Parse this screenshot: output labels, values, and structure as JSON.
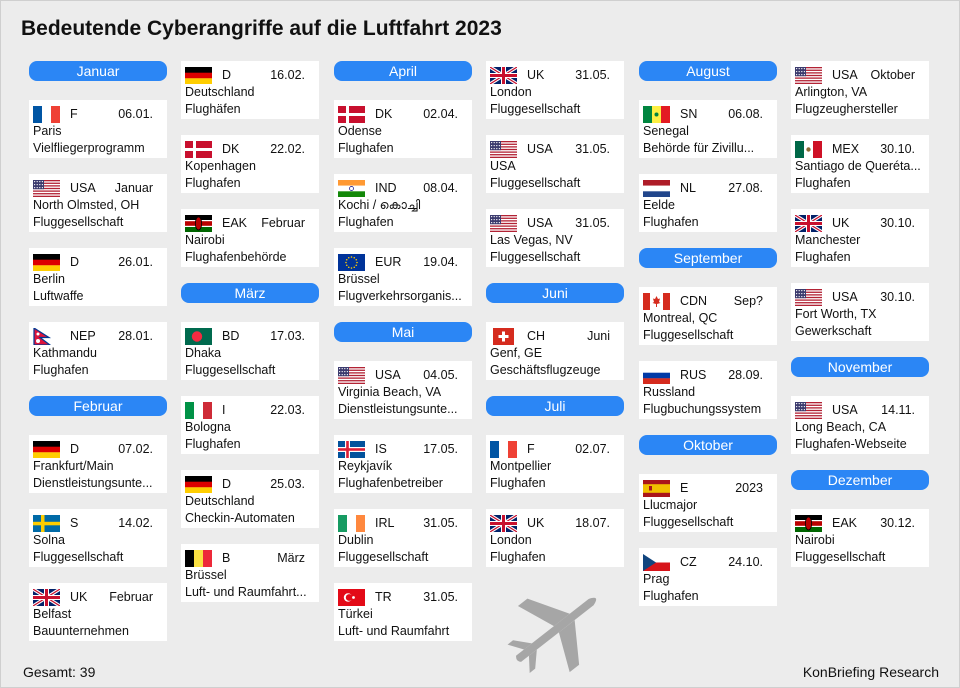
{
  "title": "Bedeutende Cyberangriffe auf die Luftfahrt 2023",
  "footer": {
    "total": "Gesamt: 39",
    "source": "KonBriefing Research"
  },
  "columns": [
    {
      "id": "col1",
      "items": [
        {
          "month": "Januar"
        },
        {
          "flag": "fr",
          "code": "F",
          "date": "06.01.",
          "location": "Paris",
          "target": "Vielfliegerprogramm"
        },
        {
          "flag": "us",
          "code": "USA",
          "date": "Januar",
          "location": "North Olmsted, OH",
          "target": "Fluggesellschaft"
        },
        {
          "flag": "de",
          "code": "D",
          "date": "26.01.",
          "location": "Berlin",
          "target": "Luftwaffe"
        },
        {
          "flag": "np",
          "code": "NEP",
          "date": "28.01.",
          "location": "Kathmandu",
          "target": "Flughafen"
        },
        {
          "month": "Februar"
        },
        {
          "flag": "de",
          "code": "D",
          "date": "07.02.",
          "location": "Frankfurt/Main",
          "target": "Dienstleistungsunte..."
        },
        {
          "flag": "se",
          "code": "S",
          "date": "14.02.",
          "location": "Solna",
          "target": "Fluggesellschaft"
        },
        {
          "flag": "uk",
          "code": "UK",
          "date": "Februar",
          "location": "Belfast",
          "target": "Bauunternehmen"
        }
      ]
    },
    {
      "id": "col2",
      "items": [
        {
          "flag": "de",
          "code": "D",
          "date": "16.02.",
          "location": "Deutschland",
          "target": "Flughäfen"
        },
        {
          "flag": "dk",
          "code": "DK",
          "date": "22.02.",
          "location": "Kopenhagen",
          "target": "Flughafen"
        },
        {
          "flag": "ke",
          "code": "EAK",
          "date": "Februar",
          "location": "Nairobi",
          "target": "Flughafenbehörde"
        },
        {
          "month": "März"
        },
        {
          "flag": "bd",
          "code": "BD",
          "date": "17.03.",
          "location": "Dhaka",
          "target": "Fluggesellschaft"
        },
        {
          "flag": "it",
          "code": "I",
          "date": "22.03.",
          "location": "Bologna",
          "target": "Flughafen"
        },
        {
          "flag": "de",
          "code": "D",
          "date": "25.03.",
          "location": "Deutschland",
          "target": "Checkin-Automaten"
        },
        {
          "flag": "be",
          "code": "B",
          "date": "März",
          "location": "Brüssel",
          "target": "Luft- und Raumfahrt..."
        }
      ]
    },
    {
      "id": "col3",
      "items": [
        {
          "month": "April"
        },
        {
          "flag": "dk",
          "code": "DK",
          "date": "02.04.",
          "location": "Odense",
          "target": "Flughafen"
        },
        {
          "flag": "in",
          "code": "IND",
          "date": "08.04.",
          "location": "Kochi / കൊച്ചി",
          "target": "Flughafen"
        },
        {
          "flag": "eu",
          "code": "EUR",
          "date": "19.04.",
          "location": "Brüssel",
          "target": "Flugverkehrsorganis..."
        },
        {
          "month": "Mai"
        },
        {
          "flag": "us",
          "code": "USA",
          "date": "04.05.",
          "location": "Virginia Beach, VA",
          "target": "Dienstleistungsunte..."
        },
        {
          "flag": "is",
          "code": "IS",
          "date": "17.05.",
          "location": "Reykjavík",
          "target": "Flughafenbetreiber"
        },
        {
          "flag": "ie",
          "code": "IRL",
          "date": "31.05.",
          "location": "Dublin",
          "target": "Fluggesellschaft"
        },
        {
          "flag": "tr",
          "code": "TR",
          "date": "31.05.",
          "location": "Türkei",
          "target": "Luft- und Raumfahrt"
        }
      ]
    },
    {
      "id": "col4",
      "items": [
        {
          "flag": "uk",
          "code": "UK",
          "date": "31.05.",
          "location": "London",
          "target": "Fluggesellschaft"
        },
        {
          "flag": "us",
          "code": "USA",
          "date": "31.05.",
          "location": "USA",
          "target": "Fluggesellschaft"
        },
        {
          "flag": "us",
          "code": "USA",
          "date": "31.05.",
          "location": "Las Vegas, NV",
          "target": "Fluggesellschaft"
        },
        {
          "month": "Juni"
        },
        {
          "flag": "ch",
          "code": "CH",
          "date": "Juni",
          "location": "Genf, GE",
          "target": "Geschäftsflugzeuge"
        },
        {
          "month": "Juli"
        },
        {
          "flag": "fr",
          "code": "F",
          "date": "02.07.",
          "location": "Montpellier",
          "target": "Flughafen"
        },
        {
          "flag": "uk",
          "code": "UK",
          "date": "18.07.",
          "location": "London",
          "target": "Flughafen"
        }
      ]
    },
    {
      "id": "col5",
      "items": [
        {
          "month": "August"
        },
        {
          "flag": "sn",
          "code": "SN",
          "date": "06.08.",
          "location": "Senegal",
          "target": "Behörde für Zivillu..."
        },
        {
          "flag": "nl",
          "code": "NL",
          "date": "27.08.",
          "location": "Eelde",
          "target": "Flughafen"
        },
        {
          "month": "September"
        },
        {
          "flag": "ca",
          "code": "CDN",
          "date": "Sep?",
          "location": "Montreal, QC",
          "target": "Fluggesellschaft"
        },
        {
          "flag": "ru",
          "code": "RUS",
          "date": "28.09.",
          "location": "Russland",
          "target": "Flugbuchungssystem"
        },
        {
          "month": "Oktober"
        },
        {
          "flag": "es",
          "code": "E",
          "date": "2023",
          "location": "Llucmajor",
          "target": "Fluggesellschaft"
        },
        {
          "flag": "cz",
          "code": "CZ",
          "date": "24.10.",
          "location": "Prag",
          "target": "Flughafen"
        }
      ]
    },
    {
      "id": "col6",
      "items": [
        {
          "flag": "us",
          "code": "USA",
          "date": "Oktober",
          "location": "Arlington, VA",
          "target": "Flugzeughersteller"
        },
        {
          "flag": "mx",
          "code": "MEX",
          "date": "30.10.",
          "location": "Santiago de Queréta...",
          "target": "Flughafen"
        },
        {
          "flag": "uk",
          "code": "UK",
          "date": "30.10.",
          "location": "Manchester",
          "target": "Flughafen"
        },
        {
          "flag": "us",
          "code": "USA",
          "date": "30.10.",
          "location": "Fort Worth, TX",
          "target": "Gewerkschaft"
        },
        {
          "month": "November"
        },
        {
          "flag": "us",
          "code": "USA",
          "date": "14.11.",
          "location": "Long Beach, CA",
          "target": "Flughafen-Webseite"
        },
        {
          "month": "Dezember"
        },
        {
          "flag": "ke",
          "code": "EAK",
          "date": "30.12.",
          "location": "Nairobi",
          "target": "Fluggesellschaft"
        }
      ]
    }
  ]
}
